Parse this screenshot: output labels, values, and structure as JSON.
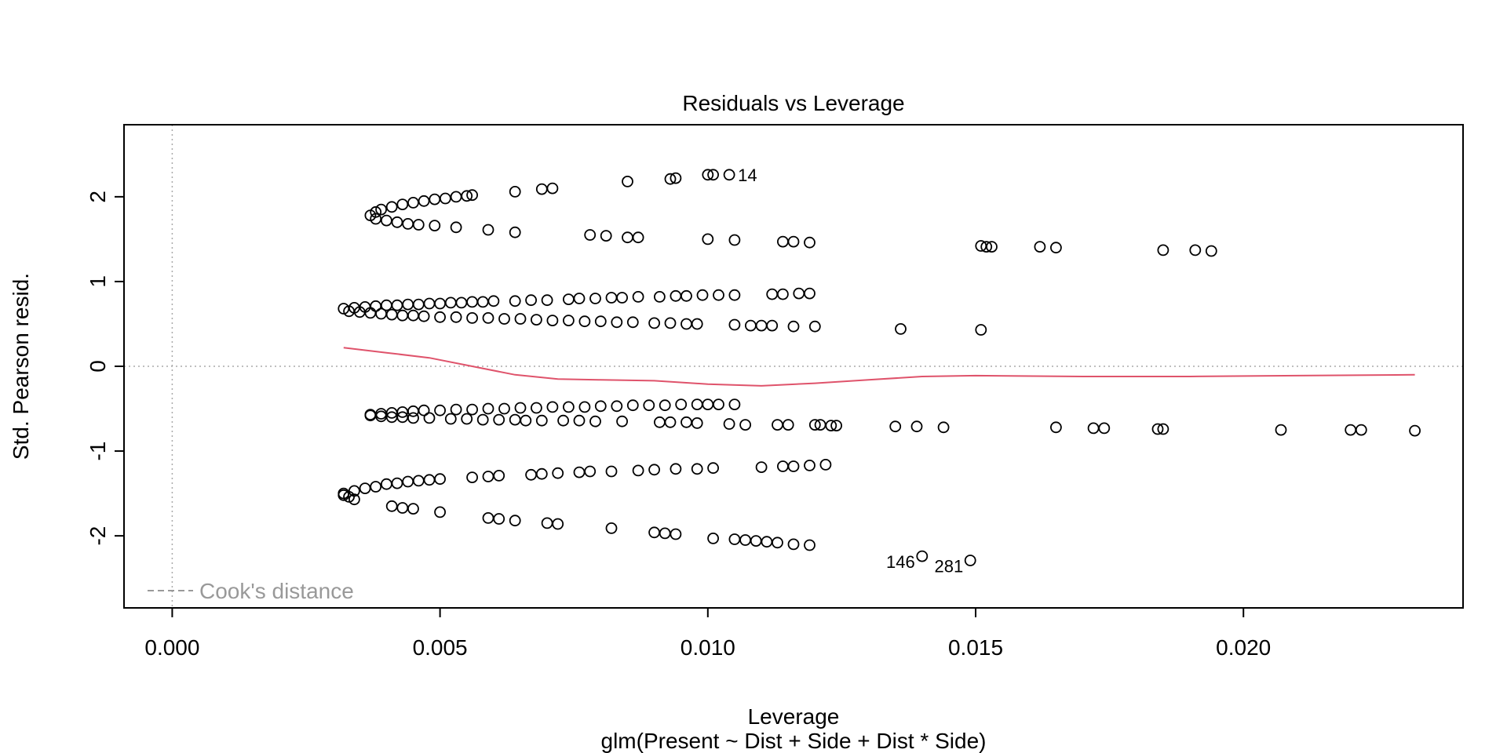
{
  "chart_data": {
    "type": "scatter",
    "title": "Residuals vs Leverage",
    "xlabel": "Leverage",
    "ylabel": "Std. Pearson resid.",
    "subtitle": "glm(Present ~ Dist + Side + Dist * Side)",
    "xlim": [
      -0.0009,
      0.0241
    ],
    "ylim": [
      -2.85,
      2.85
    ],
    "x_ticks": [
      0.0,
      0.005,
      0.01,
      0.015,
      0.02
    ],
    "x_tick_labels": [
      "0.000",
      "0.005",
      "0.010",
      "0.015",
      "0.020"
    ],
    "y_ticks": [
      -2,
      -1,
      0,
      1,
      2
    ],
    "y_tick_labels": [
      "-2",
      "-1",
      "0",
      "1",
      "2"
    ],
    "reference_lines": {
      "x": 0,
      "y": 0
    },
    "legend": {
      "entries": [
        "Cook's distance"
      ],
      "placement": "bottom-left",
      "color": "#999999"
    },
    "smooth_color": "#DF536B",
    "smooth": {
      "x": [
        0.0032,
        0.004,
        0.0048,
        0.0056,
        0.0064,
        0.0072,
        0.008,
        0.009,
        0.01,
        0.011,
        0.012,
        0.013,
        0.014,
        0.015,
        0.017,
        0.019,
        0.021,
        0.0232
      ],
      "y": [
        0.22,
        0.16,
        0.1,
        0.0,
        -0.1,
        -0.15,
        -0.16,
        -0.17,
        -0.21,
        -0.23,
        -0.2,
        -0.16,
        -0.12,
        -0.11,
        -0.12,
        -0.12,
        -0.11,
        -0.1
      ]
    },
    "point_labels": [
      {
        "text": "14",
        "x": 0.0104,
        "y": 2.26
      },
      {
        "text": "146",
        "x": 0.014,
        "y": -2.24
      },
      {
        "text": "281",
        "x": 0.0149,
        "y": -2.29
      }
    ],
    "points": {
      "x": [
        0.0037,
        0.0038,
        0.0039,
        0.0041,
        0.0043,
        0.0045,
        0.0047,
        0.0049,
        0.0051,
        0.0053,
        0.0055,
        0.0056,
        0.0064,
        0.0069,
        0.0071,
        0.0085,
        0.0093,
        0.0094,
        0.01,
        0.0101,
        0.0104,
        0.0038,
        0.004,
        0.0042,
        0.0044,
        0.0046,
        0.0049,
        0.0053,
        0.0059,
        0.0064,
        0.0078,
        0.0081,
        0.0085,
        0.0087,
        0.01,
        0.0105,
        0.0114,
        0.0116,
        0.0119,
        0.0151,
        0.0152,
        0.0153,
        0.0162,
        0.0165,
        0.0185,
        0.0191,
        0.0194,
        0.0032,
        0.0034,
        0.0036,
        0.0038,
        0.004,
        0.0042,
        0.0044,
        0.0046,
        0.0048,
        0.005,
        0.0052,
        0.0054,
        0.0056,
        0.0058,
        0.006,
        0.0064,
        0.0067,
        0.007,
        0.0074,
        0.0076,
        0.0079,
        0.0082,
        0.0084,
        0.0087,
        0.0091,
        0.0094,
        0.0096,
        0.0099,
        0.0102,
        0.0105,
        0.0112,
        0.0114,
        0.0117,
        0.0119,
        0.0033,
        0.0035,
        0.0037,
        0.0039,
        0.0041,
        0.0043,
        0.0045,
        0.0047,
        0.005,
        0.0053,
        0.0056,
        0.0059,
        0.0062,
        0.0065,
        0.0068,
        0.0071,
        0.0074,
        0.0077,
        0.008,
        0.0083,
        0.0086,
        0.009,
        0.0093,
        0.0096,
        0.0098,
        0.0105,
        0.0108,
        0.011,
        0.0112,
        0.0116,
        0.012,
        0.0136,
        0.0151,
        0.0037,
        0.0039,
        0.0041,
        0.0043,
        0.0045,
        0.0047,
        0.005,
        0.0053,
        0.0056,
        0.0059,
        0.0062,
        0.0065,
        0.0068,
        0.0071,
        0.0074,
        0.0077,
        0.008,
        0.0083,
        0.0086,
        0.0089,
        0.0092,
        0.0095,
        0.0098,
        0.01,
        0.0102,
        0.0105,
        0.0037,
        0.0039,
        0.0041,
        0.0043,
        0.0045,
        0.0048,
        0.0052,
        0.0055,
        0.0058,
        0.0061,
        0.0064,
        0.0066,
        0.0069,
        0.0073,
        0.0076,
        0.0079,
        0.0084,
        0.0091,
        0.0093,
        0.0096,
        0.0098,
        0.0104,
        0.0107,
        0.0113,
        0.0115,
        0.012,
        0.0121,
        0.0123,
        0.0124,
        0.0135,
        0.0139,
        0.0144,
        0.0165,
        0.0172,
        0.0174,
        0.0184,
        0.0185,
        0.0207,
        0.022,
        0.0222,
        0.0232,
        0.0032,
        0.0034,
        0.0036,
        0.0038,
        0.004,
        0.0042,
        0.0044,
        0.0046,
        0.0048,
        0.005,
        0.0056,
        0.0059,
        0.0061,
        0.0067,
        0.0069,
        0.0072,
        0.0076,
        0.0078,
        0.0082,
        0.0087,
        0.009,
        0.0094,
        0.0098,
        0.0101,
        0.011,
        0.0114,
        0.0116,
        0.0119,
        0.0122,
        0.0032,
        0.0033,
        0.0034,
        0.0041,
        0.0043,
        0.0045,
        0.005,
        0.0059,
        0.0061,
        0.0064,
        0.007,
        0.0072,
        0.0082,
        0.009,
        0.0092,
        0.0094,
        0.0101,
        0.0105,
        0.0107,
        0.0109,
        0.0111,
        0.0113,
        0.0116,
        0.0119,
        0.014,
        0.0149
      ],
      "y": [
        1.78,
        1.82,
        1.85,
        1.88,
        1.91,
        1.93,
        1.95,
        1.97,
        1.98,
        2.0,
        2.01,
        2.02,
        2.06,
        2.09,
        2.1,
        2.18,
        2.21,
        2.22,
        2.26,
        2.26,
        2.26,
        1.74,
        1.72,
        1.7,
        1.68,
        1.67,
        1.66,
        1.64,
        1.61,
        1.58,
        1.55,
        1.54,
        1.52,
        1.52,
        1.5,
        1.49,
        1.47,
        1.47,
        1.46,
        1.42,
        1.41,
        1.41,
        1.41,
        1.4,
        1.37,
        1.37,
        1.36,
        0.68,
        0.69,
        0.7,
        0.71,
        0.72,
        0.72,
        0.73,
        0.73,
        0.74,
        0.74,
        0.75,
        0.75,
        0.76,
        0.76,
        0.77,
        0.77,
        0.78,
        0.78,
        0.79,
        0.8,
        0.8,
        0.81,
        0.81,
        0.82,
        0.82,
        0.83,
        0.83,
        0.84,
        0.84,
        0.84,
        0.85,
        0.85,
        0.86,
        0.86,
        0.65,
        0.64,
        0.63,
        0.62,
        0.61,
        0.6,
        0.6,
        0.59,
        0.58,
        0.58,
        0.57,
        0.57,
        0.56,
        0.56,
        0.55,
        0.54,
        0.54,
        0.53,
        0.53,
        0.52,
        0.52,
        0.51,
        0.51,
        0.5,
        0.5,
        0.49,
        0.48,
        0.48,
        0.48,
        0.47,
        0.47,
        0.44,
        0.43,
        -0.57,
        -0.56,
        -0.55,
        -0.54,
        -0.53,
        -0.52,
        -0.52,
        -0.51,
        -0.51,
        -0.5,
        -0.5,
        -0.49,
        -0.49,
        -0.48,
        -0.48,
        -0.48,
        -0.47,
        -0.47,
        -0.46,
        -0.46,
        -0.46,
        -0.45,
        -0.45,
        -0.45,
        -0.45,
        -0.45,
        -0.58,
        -0.59,
        -0.6,
        -0.6,
        -0.61,
        -0.61,
        -0.62,
        -0.62,
        -0.63,
        -0.63,
        -0.63,
        -0.64,
        -0.64,
        -0.64,
        -0.64,
        -0.65,
        -0.65,
        -0.66,
        -0.66,
        -0.66,
        -0.67,
        -0.68,
        -0.69,
        -0.69,
        -0.69,
        -0.69,
        -0.69,
        -0.7,
        -0.7,
        -0.71,
        -0.71,
        -0.72,
        -0.72,
        -0.73,
        -0.73,
        -0.74,
        -0.74,
        -0.75,
        -0.75,
        -0.75,
        -0.76,
        -1.5,
        -1.47,
        -1.44,
        -1.42,
        -1.39,
        -1.38,
        -1.36,
        -1.35,
        -1.34,
        -1.33,
        -1.31,
        -1.3,
        -1.29,
        -1.28,
        -1.27,
        -1.26,
        -1.25,
        -1.24,
        -1.24,
        -1.23,
        -1.22,
        -1.21,
        -1.21,
        -1.2,
        -1.19,
        -1.18,
        -1.18,
        -1.17,
        -1.16,
        -1.52,
        -1.54,
        -1.57,
        -1.65,
        -1.67,
        -1.68,
        -1.72,
        -1.79,
        -1.8,
        -1.82,
        -1.85,
        -1.86,
        -1.91,
        -1.96,
        -1.97,
        -1.98,
        -2.03,
        -2.04,
        -2.05,
        -2.06,
        -2.07,
        -2.08,
        -2.1,
        -2.11,
        -2.24,
        -2.29
      ]
    }
  }
}
